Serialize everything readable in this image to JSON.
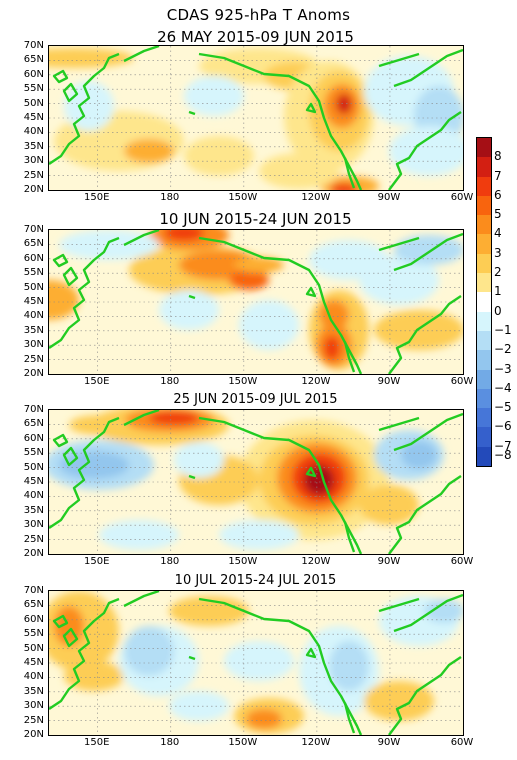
{
  "title": "CDAS 925-hPa T Anoms",
  "panels": [
    {
      "title": "26 MAY 2015-09 JUN 2015"
    },
    {
      "title": "10 JUN 2015-24 JUN 2015"
    },
    {
      "title": "25 JUN 2015-09 JUL 2015"
    },
    {
      "title": "10 JUL 2015-24 JUL 2015"
    }
  ],
  "lat_labels": [
    "70N",
    "65N",
    "60N",
    "55N",
    "50N",
    "45N",
    "40N",
    "35N",
    "30N",
    "25N",
    "20N"
  ],
  "lon_labels": [
    "150E",
    "180",
    "150W",
    "120W",
    "90W",
    "60W"
  ],
  "colorbar": {
    "labels": [
      "8",
      "7",
      "6",
      "5",
      "4",
      "3",
      "2",
      "1",
      "0",
      "−1",
      "−2",
      "−3",
      "−4",
      "−5",
      "−6",
      "−7",
      "−8"
    ],
    "colors": [
      "#a50f15",
      "#d31f12",
      "#f03c0e",
      "#f8640e",
      "#fb8c1c",
      "#fdae33",
      "#fdcd54",
      "#fee68c",
      "#ffffff",
      "#d6f5fc",
      "#b4def5",
      "#93c6ee",
      "#72aae6",
      "#5a8fe0",
      "#4676d8",
      "#3560cc",
      "#234aba"
    ]
  },
  "panel_titles_sizes": [
    "large",
    "large",
    "medium",
    "medium"
  ]
}
